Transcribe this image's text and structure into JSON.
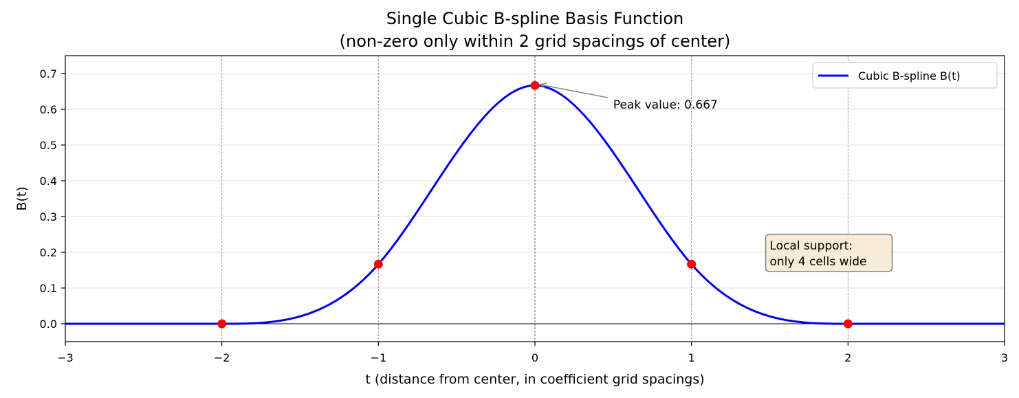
{
  "chart_data": {
    "type": "line",
    "title": "Single Cubic B-spline Basis Function",
    "subtitle": "(non-zero only within 2 grid spacings of center)",
    "xlabel": "t (distance from center, in coefficient grid spacings)",
    "ylabel": "B(t)",
    "xlim": [
      -3,
      3
    ],
    "ylim": [
      -0.05,
      0.75
    ],
    "xticks": [
      -3,
      -2,
      -1,
      0,
      1,
      2,
      3
    ],
    "xtick_labels": [
      "−3",
      "−2",
      "−1",
      "0",
      "1",
      "2",
      "3"
    ],
    "yticks": [
      0.0,
      0.1,
      0.2,
      0.3,
      0.4,
      0.5,
      0.6,
      0.7
    ],
    "ytick_labels": [
      "0.0",
      "0.1",
      "0.2",
      "0.3",
      "0.4",
      "0.5",
      "0.6",
      "0.7"
    ],
    "grid": "horizontal",
    "vertical_dashed_lines_at": [
      -2,
      -1,
      0,
      1,
      2
    ],
    "series": [
      {
        "name": "Cubic B-spline B(t)",
        "color": "#0000ee",
        "function": "cubic-bspline",
        "x_range": [
          -3,
          3
        ]
      }
    ],
    "points": {
      "color": "#ff0000",
      "x": [
        -2,
        -1,
        0,
        1,
        2
      ],
      "y": [
        0.0,
        0.1667,
        0.6667,
        0.1667,
        0.0
      ]
    },
    "annotations": [
      {
        "text": "Peak value: 0.667",
        "xy": [
          0,
          0.667
        ],
        "xytext": [
          0.5,
          0.6
        ]
      }
    ],
    "textbox": {
      "lines": [
        "Local support:",
        "only 4 cells wide"
      ],
      "at": [
        1.5,
        0.15
      ]
    },
    "legend": "top-right"
  }
}
